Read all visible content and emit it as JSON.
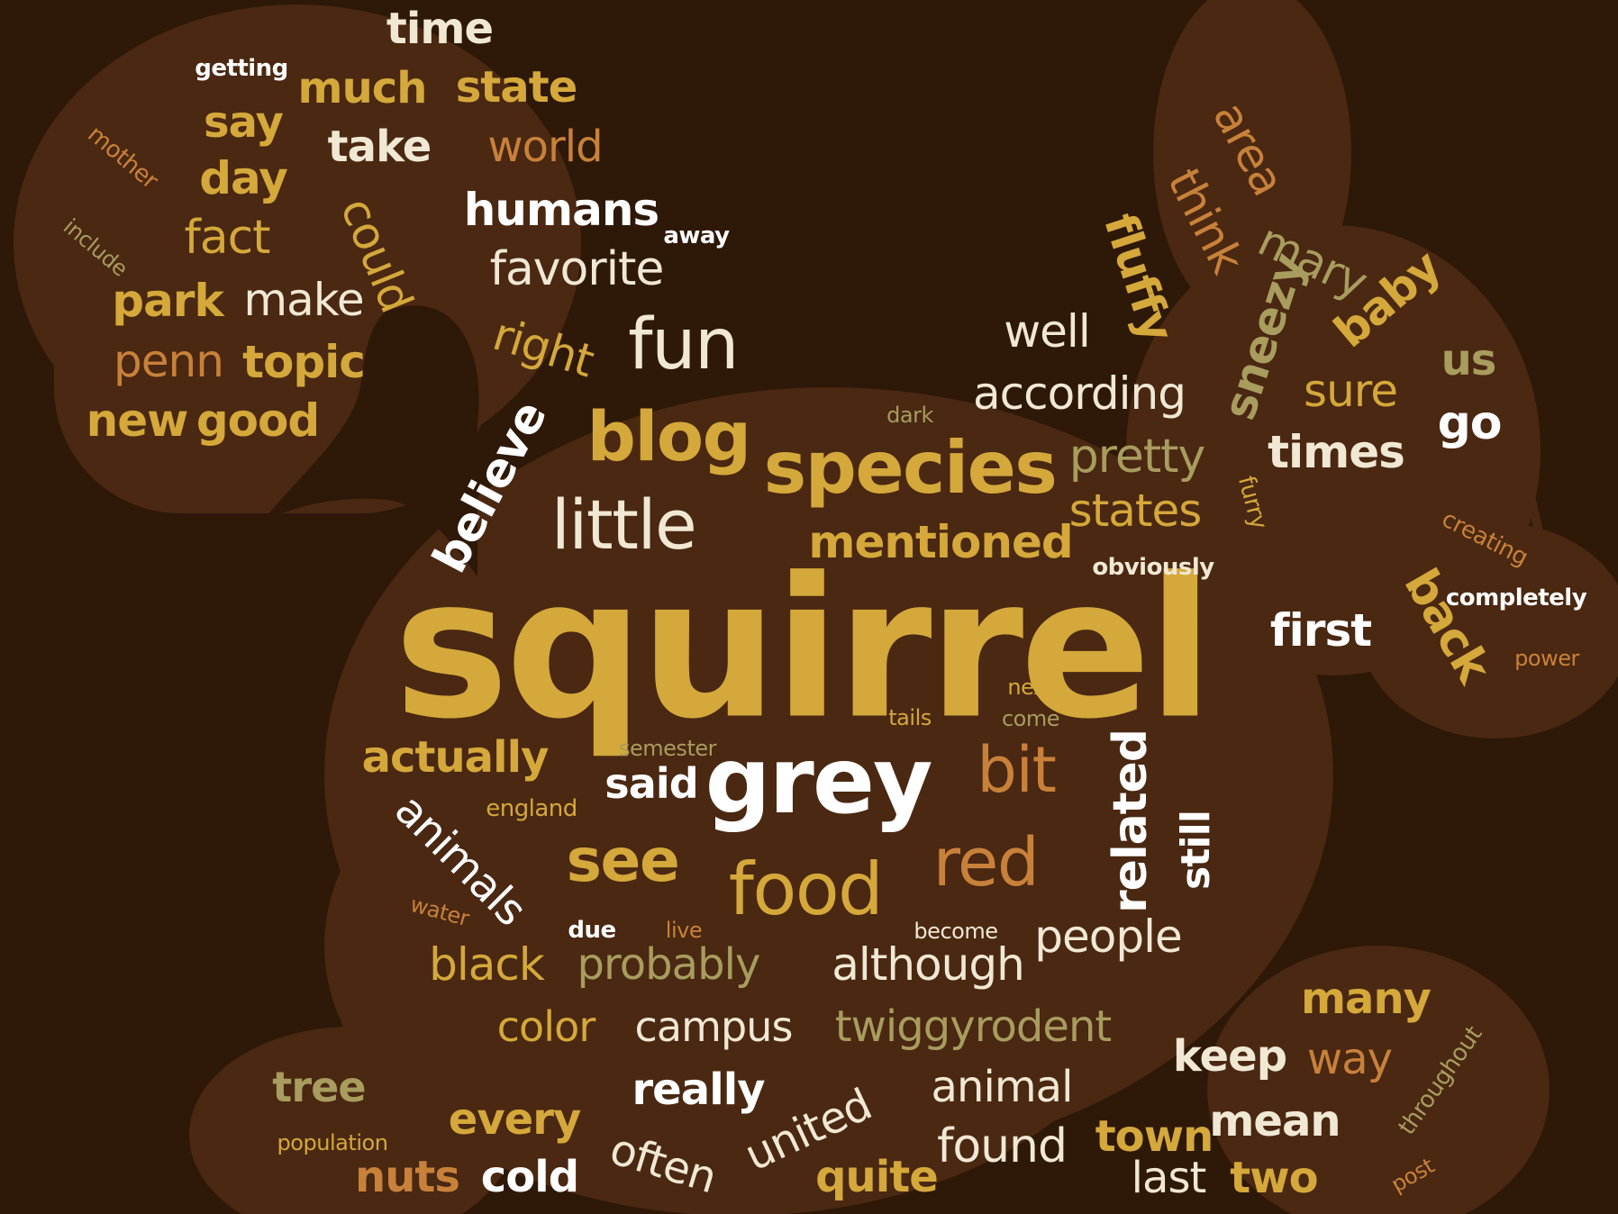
{
  "background_color": "#2e1808",
  "silhouette_color": "#4a2812",
  "palette": {
    "gold": "#d4a83a",
    "cream": "#f1e8d4",
    "orange": "#c8813a",
    "olive": "#a89c5e",
    "white": "#ffffff"
  },
  "words": [
    {
      "text": "squirrel",
      "color": "gold"
    },
    {
      "text": "grey",
      "color": "white"
    },
    {
      "text": "species",
      "color": "gold"
    },
    {
      "text": "little",
      "color": "cream"
    },
    {
      "text": "blog",
      "color": "gold"
    },
    {
      "text": "fun",
      "color": "cream"
    },
    {
      "text": "food",
      "color": "gold"
    },
    {
      "text": "red",
      "color": "orange"
    },
    {
      "text": "bit",
      "color": "orange"
    },
    {
      "text": "see",
      "color": "gold"
    },
    {
      "text": "time",
      "color": "cream"
    },
    {
      "text": "getting",
      "color": "white"
    },
    {
      "text": "much",
      "color": "gold"
    },
    {
      "text": "state",
      "color": "gold"
    },
    {
      "text": "say",
      "color": "gold"
    },
    {
      "text": "take",
      "color": "cream"
    },
    {
      "text": "world",
      "color": "orange"
    },
    {
      "text": "mother",
      "color": "orange"
    },
    {
      "text": "day",
      "color": "gold"
    },
    {
      "text": "humans",
      "color": "white"
    },
    {
      "text": "away",
      "color": "white"
    },
    {
      "text": "include",
      "color": "olive"
    },
    {
      "text": "fact",
      "color": "gold"
    },
    {
      "text": "could",
      "color": "gold"
    },
    {
      "text": "favorite",
      "color": "cream"
    },
    {
      "text": "park",
      "color": "gold"
    },
    {
      "text": "make",
      "color": "cream"
    },
    {
      "text": "penn",
      "color": "orange"
    },
    {
      "text": "topic",
      "color": "gold"
    },
    {
      "text": "right",
      "color": "gold"
    },
    {
      "text": "new",
      "color": "gold"
    },
    {
      "text": "good",
      "color": "gold"
    },
    {
      "text": "believe",
      "color": "white"
    },
    {
      "text": "area",
      "color": "orange"
    },
    {
      "text": "think",
      "color": "orange"
    },
    {
      "text": "fluffy",
      "color": "gold"
    },
    {
      "text": "mary",
      "color": "olive"
    },
    {
      "text": "baby",
      "color": "gold"
    },
    {
      "text": "sneezy",
      "color": "olive"
    },
    {
      "text": "well",
      "color": "cream"
    },
    {
      "text": "us",
      "color": "olive"
    },
    {
      "text": "according",
      "color": "cream"
    },
    {
      "text": "sure",
      "color": "gold"
    },
    {
      "text": "dark",
      "color": "olive"
    },
    {
      "text": "go",
      "color": "white"
    },
    {
      "text": "pretty",
      "color": "olive"
    },
    {
      "text": "times",
      "color": "cream"
    },
    {
      "text": "furry",
      "color": "gold"
    },
    {
      "text": "states",
      "color": "gold"
    },
    {
      "text": "creating",
      "color": "orange"
    },
    {
      "text": "mentioned",
      "color": "gold"
    },
    {
      "text": "obviously",
      "color": "cream"
    },
    {
      "text": "completely",
      "color": "white"
    },
    {
      "text": "back",
      "color": "gold"
    },
    {
      "text": "first",
      "color": "white"
    },
    {
      "text": "power",
      "color": "orange"
    },
    {
      "text": "next",
      "color": "gold"
    },
    {
      "text": "tails",
      "color": "gold"
    },
    {
      "text": "come",
      "color": "olive"
    },
    {
      "text": "semester",
      "color": "olive"
    },
    {
      "text": "actually",
      "color": "gold"
    },
    {
      "text": "said",
      "color": "white"
    },
    {
      "text": "england",
      "color": "gold"
    },
    {
      "text": "animals",
      "color": "white"
    },
    {
      "text": "related",
      "color": "white"
    },
    {
      "text": "still",
      "color": "white"
    },
    {
      "text": "water",
      "color": "orange"
    },
    {
      "text": "due",
      "color": "white"
    },
    {
      "text": "live",
      "color": "orange"
    },
    {
      "text": "become",
      "color": "cream"
    },
    {
      "text": "people",
      "color": "cream"
    },
    {
      "text": "black",
      "color": "gold"
    },
    {
      "text": "probably",
      "color": "olive"
    },
    {
      "text": "although",
      "color": "cream"
    },
    {
      "text": "many",
      "color": "gold"
    },
    {
      "text": "color",
      "color": "gold"
    },
    {
      "text": "campus",
      "color": "cream"
    },
    {
      "text": "twiggyrodent",
      "color": "olive"
    },
    {
      "text": "keep",
      "color": "cream"
    },
    {
      "text": "way",
      "color": "orange"
    },
    {
      "text": "throughout",
      "color": "olive"
    },
    {
      "text": "tree",
      "color": "olive"
    },
    {
      "text": "really",
      "color": "white"
    },
    {
      "text": "animal",
      "color": "cream"
    },
    {
      "text": "every",
      "color": "gold"
    },
    {
      "text": "united",
      "color": "cream"
    },
    {
      "text": "town",
      "color": "gold"
    },
    {
      "text": "mean",
      "color": "cream"
    },
    {
      "text": "population",
      "color": "gold"
    },
    {
      "text": "often",
      "color": "cream"
    },
    {
      "text": "found",
      "color": "cream"
    },
    {
      "text": "nuts",
      "color": "orange"
    },
    {
      "text": "cold",
      "color": "white"
    },
    {
      "text": "quite",
      "color": "gold"
    },
    {
      "text": "last",
      "color": "cream"
    },
    {
      "text": "two",
      "color": "gold"
    },
    {
      "text": "post",
      "color": "orange"
    }
  ]
}
